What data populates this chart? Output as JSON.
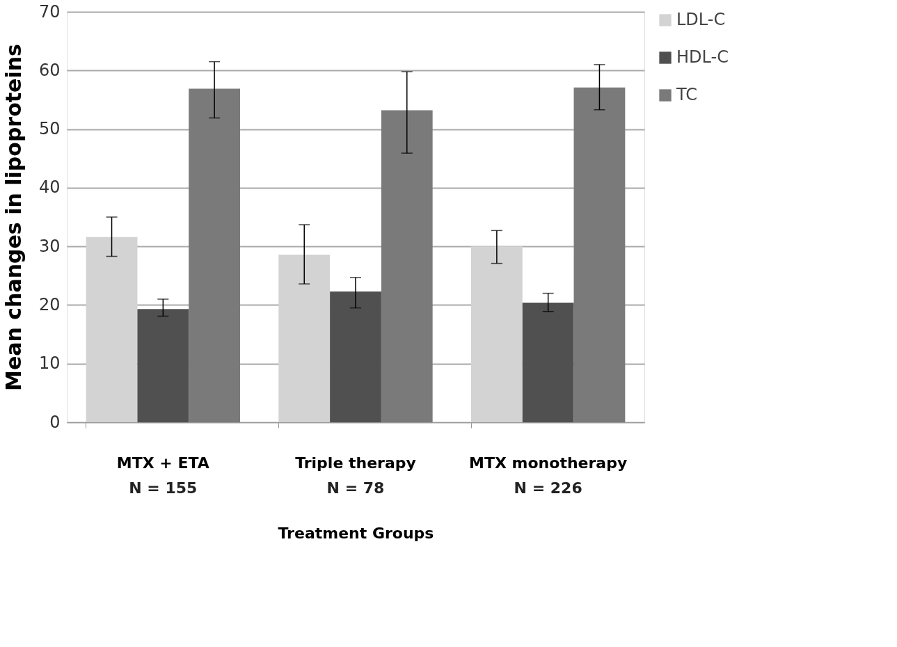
{
  "chart_data": {
    "type": "bar",
    "xlabel": "Treatment Groups",
    "ylabel": "Mean changes in lipoproteins",
    "categories": [
      "MTX + ETA",
      "Triple therapy",
      "MTX monotherapy"
    ],
    "series": [
      {
        "name": "LDL-C",
        "color": "#d3d3d3",
        "values": [
          31.6,
          28.6,
          30.0
        ],
        "errors": [
          [
            28.3,
            35.0
          ],
          [
            23.6,
            33.7
          ],
          [
            27.1,
            32.7
          ]
        ]
      },
      {
        "name": "HDL-C",
        "color": "#505050",
        "values": [
          19.3,
          22.3,
          20.4
        ],
        "errors": [
          [
            18.1,
            21.0
          ],
          [
            19.5,
            24.7
          ],
          [
            18.9,
            22.0
          ]
        ]
      },
      {
        "name": "TC",
        "color": "#7a7a7a",
        "values": [
          56.9,
          53.2,
          57.1
        ],
        "errors": [
          [
            51.9,
            61.5
          ],
          [
            45.9,
            59.8
          ],
          [
            53.3,
            61.0
          ]
        ]
      }
    ],
    "annotations": [
      "N = 155",
      "N = 78",
      "N = 226"
    ],
    "ylim": [
      0,
      70
    ],
    "yticks": [
      0,
      10,
      20,
      30,
      40,
      50,
      60,
      70
    ],
    "grid": "y",
    "legend": "right"
  }
}
